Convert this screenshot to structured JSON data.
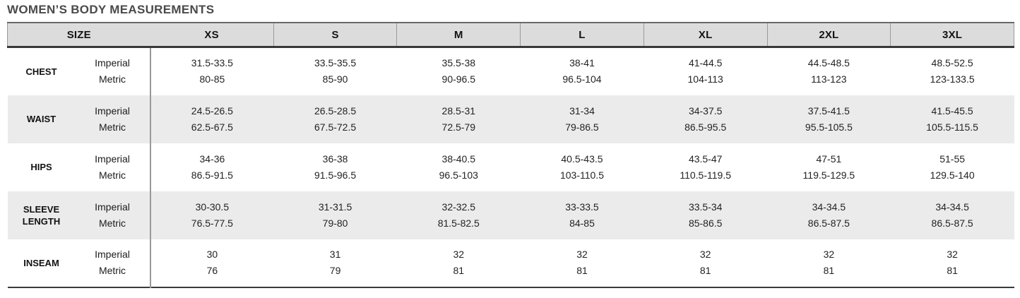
{
  "title": "WOMEN’S BODY MEASUREMENTS",
  "chart_data": {
    "type": "table",
    "title": "WOMEN’S BODY MEASUREMENTS",
    "size_header": "SIZE",
    "sizes": [
      "XS",
      "S",
      "M",
      "L",
      "XL",
      "2XL",
      "3XL"
    ],
    "unit_labels": {
      "imperial": "Imperial",
      "metric": "Metric"
    },
    "rows": [
      {
        "label": "CHEST",
        "imperial": [
          "31.5-33.5",
          "33.5-35.5",
          "35.5-38",
          "38-41",
          "41-44.5",
          "44.5-48.5",
          "48.5-52.5"
        ],
        "metric": [
          "80-85",
          "85-90",
          "90-96.5",
          "96.5-104",
          "104-113",
          "113-123",
          "123-133.5"
        ]
      },
      {
        "label": "WAIST",
        "imperial": [
          "24.5-26.5",
          "26.5-28.5",
          "28.5-31",
          "31-34",
          "34-37.5",
          "37.5-41.5",
          "41.5-45.5"
        ],
        "metric": [
          "62.5-67.5",
          "67.5-72.5",
          "72.5-79",
          "79-86.5",
          "86.5-95.5",
          "95.5-105.5",
          "105.5-115.5"
        ]
      },
      {
        "label": "HIPS",
        "imperial": [
          "34-36",
          "36-38",
          "38-40.5",
          "40.5-43.5",
          "43.5-47",
          "47-51",
          "51-55"
        ],
        "metric": [
          "86.5-91.5",
          "91.5-96.5",
          "96.5-103",
          "103-110.5",
          "110.5-119.5",
          "119.5-129.5",
          "129.5-140"
        ]
      },
      {
        "label": "SLEEVE LENGTH",
        "imperial": [
          "30-30.5",
          "31-31.5",
          "32-32.5",
          "33-33.5",
          "33.5-34",
          "34-34.5",
          "34-34.5"
        ],
        "metric": [
          "76.5-77.5",
          "79-80",
          "81.5-82.5",
          "84-85",
          "85-86.5",
          "86.5-87.5",
          "86.5-87.5"
        ]
      },
      {
        "label": "INSEAM",
        "imperial": [
          "30",
          "31",
          "32",
          "32",
          "32",
          "32",
          "32"
        ],
        "metric": [
          "76",
          "79",
          "81",
          "81",
          "81",
          "81",
          "81"
        ]
      }
    ]
  },
  "colors": {
    "header_bg": "#dcdcdc",
    "stripe_bg": "#ebebeb",
    "border_dark": "#3a3a3a",
    "divider_gray": "#999999",
    "title_text": "#4a4a4a",
    "value_text": "#232323"
  }
}
